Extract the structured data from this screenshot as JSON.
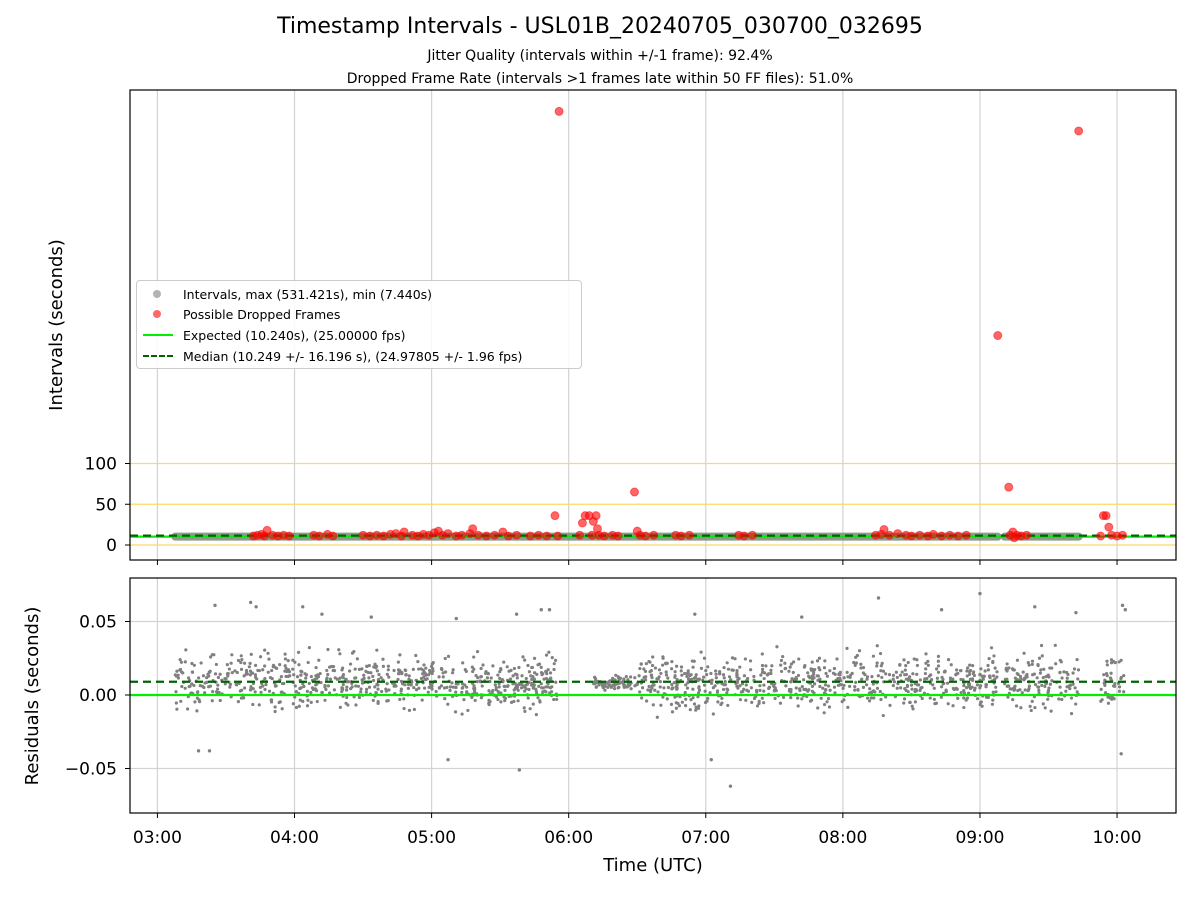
{
  "title": "Timestamp Intervals - USL01B_20240705_030700_032695",
  "subtitle_1": "Jitter Quality (intervals within +/-1 frame): 92.4%",
  "subtitle_2": "Dropped Frame Rate (intervals >1 frames late within 50 FF files): 51.0%",
  "colors": {
    "intervals": "#808080",
    "dropped": "#ff0000",
    "expected": "#00ee00",
    "median": "#006400",
    "threshold": "#ffd866",
    "grid": "#d3d3d3"
  },
  "legend": {
    "intervals": "Intervals, max (531.421s), min (7.440s)",
    "dropped": "Possible Dropped Frames",
    "expected": "Expected (10.240s), (25.00000 fps)",
    "median": "Median (10.249 +/- 16.196 s), (24.97805 +/- 1.96 fps)"
  },
  "chart_data": [
    {
      "type": "scatter",
      "panel": "intervals",
      "ylabel": "Intervals (seconds)",
      "xlabel": "",
      "x_unit": "hours UTC",
      "xlim": [
        2.8,
        10.43
      ],
      "x_ticks": [
        3,
        4,
        5,
        6,
        7,
        8,
        9,
        10
      ],
      "x_tick_labels": [
        "03:00",
        "04:00",
        "05:00",
        "06:00",
        "07:00",
        "08:00",
        "09:00",
        "10:00"
      ],
      "y_ticks": [
        0,
        50,
        100
      ],
      "y_tick_labels": [
        "0",
        "50",
        "100"
      ],
      "grid": "x",
      "expected_interval": 10.24,
      "median_interval": 10.249,
      "threshold_lines": [
        0,
        50,
        100
      ],
      "interval_segments": [
        [
          3.13,
          9.13
        ],
        [
          9.18,
          9.72
        ]
      ],
      "interval_value": 10.24,
      "dropped_frames": [
        [
          3.7,
          11
        ],
        [
          3.73,
          12
        ],
        [
          3.76,
          13
        ],
        [
          3.78,
          11
        ],
        [
          3.8,
          18
        ],
        [
          3.84,
          12
        ],
        [
          3.88,
          11
        ],
        [
          3.92,
          12
        ],
        [
          3.96,
          11
        ],
        [
          4.14,
          12
        ],
        [
          4.18,
          11
        ],
        [
          4.24,
          13
        ],
        [
          4.28,
          11
        ],
        [
          4.5,
          12
        ],
        [
          4.55,
          11
        ],
        [
          4.6,
          12
        ],
        [
          4.65,
          11
        ],
        [
          4.7,
          13
        ],
        [
          4.74,
          14
        ],
        [
          4.78,
          11
        ],
        [
          4.8,
          16
        ],
        [
          4.86,
          12
        ],
        [
          4.9,
          11
        ],
        [
          4.94,
          13
        ],
        [
          4.98,
          12
        ],
        [
          5.02,
          15
        ],
        [
          5.05,
          17
        ],
        [
          5.08,
          12
        ],
        [
          5.12,
          14
        ],
        [
          5.18,
          11
        ],
        [
          5.22,
          12
        ],
        [
          5.28,
          14
        ],
        [
          5.3,
          20
        ],
        [
          5.34,
          12
        ],
        [
          5.4,
          11
        ],
        [
          5.46,
          12
        ],
        [
          5.52,
          16
        ],
        [
          5.56,
          11
        ],
        [
          5.62,
          12
        ],
        [
          5.72,
          11
        ],
        [
          5.78,
          12
        ],
        [
          5.84,
          11
        ],
        [
          5.9,
          36
        ],
        [
          5.92,
          11
        ],
        [
          6.08,
          12
        ],
        [
          6.1,
          27
        ],
        [
          6.12,
          36
        ],
        [
          6.15,
          36
        ],
        [
          6.17,
          12
        ],
        [
          6.18,
          29
        ],
        [
          6.2,
          36
        ],
        [
          6.21,
          20
        ],
        [
          6.22,
          12
        ],
        [
          6.26,
          11
        ],
        [
          6.32,
          12
        ],
        [
          6.36,
          11
        ],
        [
          6.48,
          65
        ],
        [
          6.5,
          17
        ],
        [
          6.52,
          12
        ],
        [
          6.56,
          11
        ],
        [
          6.62,
          12
        ],
        [
          6.78,
          12
        ],
        [
          6.82,
          11
        ],
        [
          6.88,
          12
        ],
        [
          7.24,
          12
        ],
        [
          7.28,
          11
        ],
        [
          7.34,
          12
        ],
        [
          8.24,
          12
        ],
        [
          8.28,
          13
        ],
        [
          8.3,
          19
        ],
        [
          8.34,
          12
        ],
        [
          8.4,
          14
        ],
        [
          8.46,
          12
        ],
        [
          8.5,
          11
        ],
        [
          8.56,
          12
        ],
        [
          8.62,
          11
        ],
        [
          8.66,
          13
        ],
        [
          8.72,
          11
        ],
        [
          8.78,
          12
        ],
        [
          8.84,
          11
        ],
        [
          8.9,
          12
        ],
        [
          9.13,
          257
        ],
        [
          9.21,
          71
        ],
        [
          9.22,
          12
        ],
        [
          9.24,
          16
        ],
        [
          9.25,
          9
        ],
        [
          9.27,
          12
        ],
        [
          9.3,
          11
        ],
        [
          9.34,
          12
        ],
        [
          9.72,
          508
        ],
        [
          9.88,
          11
        ],
        [
          9.9,
          36
        ],
        [
          9.92,
          36
        ],
        [
          9.94,
          22
        ],
        [
          9.96,
          12
        ],
        [
          10.0,
          11
        ],
        [
          10.04,
          12
        ],
        [
          5.93,
          532
        ]
      ]
    },
    {
      "type": "scatter",
      "panel": "residuals",
      "ylabel": "Residuals (seconds)",
      "xlabel": "Time (UTC)",
      "xlim": [
        2.8,
        10.43
      ],
      "ylim": [
        -0.08,
        0.08
      ],
      "x_ticks": [
        3,
        4,
        5,
        6,
        7,
        8,
        9,
        10
      ],
      "x_tick_labels": [
        "03:00",
        "04:00",
        "05:00",
        "06:00",
        "07:00",
        "08:00",
        "09:00",
        "10:00"
      ],
      "y_ticks": [
        -0.05,
        0.0,
        0.05
      ],
      "y_tick_labels": [
        "−0.05",
        "0.00",
        "0.05"
      ],
      "grid": "both",
      "expected_residual": 0.0,
      "median_residual": 0.009,
      "residual_ranges": [
        [
          3.13,
          5.92
        ],
        [
          6.18,
          9.13
        ],
        [
          9.18,
          9.72
        ],
        [
          9.88,
          10.05
        ]
      ],
      "residual_spread": 0.028,
      "residual_outliers": [
        [
          3.42,
          0.061
        ],
        [
          3.68,
          0.063
        ],
        [
          3.72,
          0.06
        ],
        [
          4.06,
          0.06
        ],
        [
          4.56,
          0.053
        ],
        [
          5.18,
          0.052
        ],
        [
          5.62,
          0.055
        ],
        [
          5.8,
          0.058
        ],
        [
          5.86,
          0.058
        ],
        [
          5.64,
          -0.051
        ],
        [
          7.18,
          -0.062
        ],
        [
          7.04,
          -0.044
        ],
        [
          8.26,
          0.066
        ],
        [
          8.72,
          0.058
        ],
        [
          9.0,
          0.069
        ],
        [
          9.4,
          0.06
        ],
        [
          9.7,
          0.056
        ],
        [
          10.04,
          0.061
        ],
        [
          10.06,
          0.058
        ],
        [
          3.3,
          -0.038
        ],
        [
          3.38,
          -0.038
        ],
        [
          5.12,
          -0.044
        ],
        [
          10.03,
          -0.04
        ],
        [
          4.2,
          0.055
        ],
        [
          6.92,
          0.055
        ],
        [
          7.7,
          0.053
        ]
      ]
    }
  ]
}
